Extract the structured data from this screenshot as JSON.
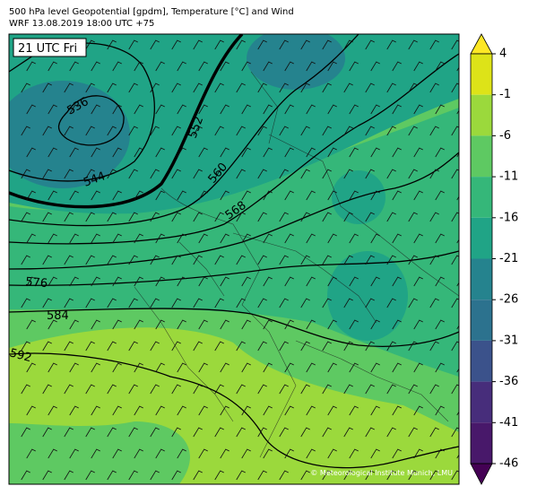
{
  "header": {
    "title": "500 hPa level Geopotential [gpdm], Temperature [°C] and Wind",
    "subtitle": "WRF 13.08.2019 18:00 UTC +75"
  },
  "map": {
    "time_label": "21 UTC Fri",
    "contour_labels": [
      "536",
      "544",
      "552",
      "560",
      "568",
      "576",
      "584",
      "592"
    ],
    "credit": "© Meteorological Institute Munich, LMU"
  },
  "colorbar": {
    "ticks": [
      4,
      -1,
      -6,
      -11,
      -16,
      -21,
      -26,
      -31,
      -36,
      -41,
      -46
    ],
    "colors": [
      "#fde725",
      "#dde318",
      "#9bd93c",
      "#5ec962",
      "#35b779",
      "#20a486",
      "#25838e",
      "#2c728e",
      "#3b528b",
      "#472d7b",
      "#48186a",
      "#440154"
    ]
  }
}
